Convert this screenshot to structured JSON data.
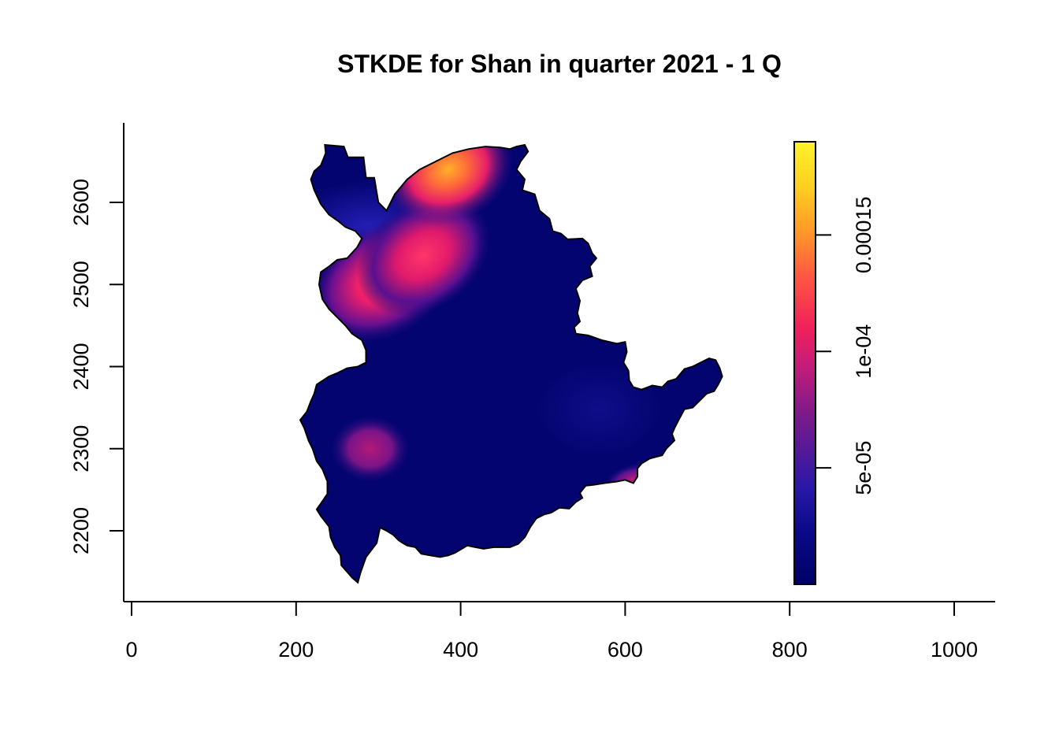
{
  "chart_data": {
    "type": "heatmap",
    "title": "STKDE for Shan in quarter 2021 - 1 Q",
    "xlabel": "",
    "ylabel": "",
    "x_ticks": [
      0,
      200,
      400,
      600,
      800,
      1000
    ],
    "y_ticks": [
      2200,
      2300,
      2400,
      2500,
      2600
    ],
    "xlim": [
      -10,
      1050
    ],
    "ylim": [
      2130,
      2710
    ],
    "grid": false,
    "colorbar": {
      "position": "right",
      "range": [
        0,
        0.00019
      ],
      "ticks": [
        {
          "value": 5e-05,
          "label": "5e-05"
        },
        {
          "value": 0.0001,
          "label": "1e-04"
        },
        {
          "value": 0.00015,
          "label": "0.00015"
        }
      ],
      "colors": [
        "#000066",
        "#0a0a8a",
        "#2a18a8",
        "#7a1a8a",
        "#c81c78",
        "#f0205a",
        "#ff5a40",
        "#ff9a28",
        "#ffd020",
        "#fff22a"
      ]
    },
    "hotspots": [
      {
        "x": 305,
        "y": 2505,
        "value": 0.000105
      },
      {
        "x": 355,
        "y": 2535,
        "value": 9.5e-05
      },
      {
        "x": 385,
        "y": 2640,
        "value": 0.00016
      },
      {
        "x": 290,
        "y": 2300,
        "value": 7.2e-05
      },
      {
        "x": 610,
        "y": 2262,
        "value": 6e-05
      }
    ],
    "region": "Shan"
  }
}
